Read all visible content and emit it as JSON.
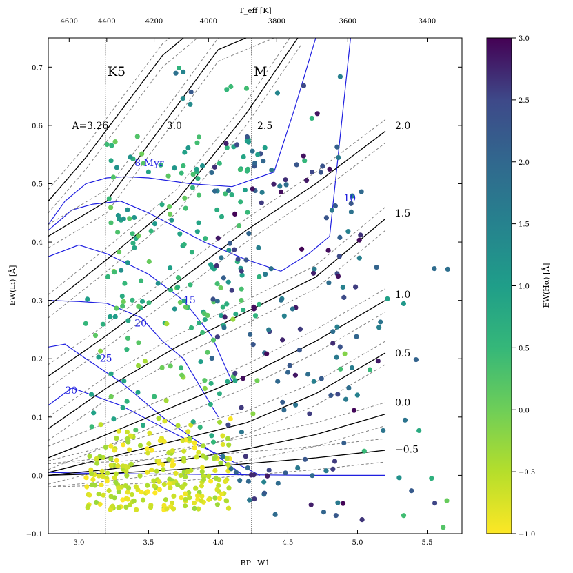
{
  "chart_data": {
    "type": "scatter",
    "xlabel": "BP−W1",
    "ylabel": "EW(Li) [Å]",
    "top_axis_label": "T_eff [K]",
    "colorbar_label": "EW(Hα) [Å]",
    "xlim": [
      2.78,
      5.75
    ],
    "ylim": [
      -0.1,
      0.75
    ],
    "colorbar_range": [
      -1.0,
      3.0
    ],
    "colormap": "viridis_r",
    "x_ticks": [
      "3.0",
      "3.5",
      "4.0",
      "4.5",
      "5.0",
      "5.5"
    ],
    "y_ticks": [
      "−0.1",
      "0.0",
      "0.1",
      "0.2",
      "0.3",
      "0.4",
      "0.5",
      "0.6",
      "0.7"
    ],
    "colorbar_ticks": [
      "−1.0",
      "−0.5",
      "0.0",
      "0.5",
      "1.0",
      "1.5",
      "2.0",
      "2.5",
      "3.0"
    ],
    "top_ticks": [
      {
        "label": "4600",
        "x": 2.93
      },
      {
        "label": "4400",
        "x": 3.2
      },
      {
        "label": "4200",
        "x": 3.54
      },
      {
        "label": "4000",
        "x": 3.93
      },
      {
        "label": "3800",
        "x": 4.42
      },
      {
        "label": "3600",
        "x": 4.93
      },
      {
        "label": "3400",
        "x": 5.5
      }
    ],
    "spectral_type_boundaries": [
      {
        "label": "K5",
        "x": 3.19
      },
      {
        "label": "M",
        "x": 4.24
      }
    ],
    "lithium_abundance_curves": [
      {
        "label": "A=3.26",
        "x": [
          2.78,
          3.05,
          3.6,
          3.95
        ],
        "y": [
          0.47,
          0.545,
          0.72,
          0.79
        ]
      },
      {
        "label": "3.0",
        "x": [
          2.78,
          3.2,
          3.6,
          4.0,
          4.6
        ],
        "y": [
          0.41,
          0.47,
          0.6,
          0.73,
          0.79
        ]
      },
      {
        "label": "2.5",
        "x": [
          2.78,
          3.2,
          3.7,
          4.2,
          4.6
        ],
        "y": [
          0.29,
          0.37,
          0.47,
          0.62,
          0.76
        ]
      },
      {
        "label": "2.0",
        "x": [
          2.78,
          3.2,
          3.7,
          4.2,
          4.7,
          5.2
        ],
        "y": [
          0.17,
          0.24,
          0.33,
          0.42,
          0.5,
          0.59
        ]
      },
      {
        "label": "1.5",
        "x": [
          2.78,
          3.2,
          3.7,
          4.2,
          4.7,
          5.2
        ],
        "y": [
          0.08,
          0.15,
          0.22,
          0.28,
          0.34,
          0.44
        ]
      },
      {
        "label": "1.0",
        "x": [
          2.78,
          3.2,
          3.7,
          4.2,
          4.7,
          5.2
        ],
        "y": [
          0.03,
          0.07,
          0.12,
          0.17,
          0.23,
          0.3
        ]
      },
      {
        "label": "0.5",
        "x": [
          2.78,
          3.2,
          3.7,
          4.2,
          4.7,
          5.2
        ],
        "y": [
          0.005,
          0.03,
          0.06,
          0.09,
          0.14,
          0.21
        ]
      },
      {
        "label": "0.0",
        "x": [
          2.78,
          3.2,
          3.7,
          4.2,
          4.7,
          5.2
        ],
        "y": [
          0.0,
          0.01,
          0.025,
          0.045,
          0.07,
          0.105
        ]
      },
      {
        "label": "−0.5",
        "x": [
          2.78,
          3.2,
          3.7,
          4.2,
          4.7,
          5.2
        ],
        "y": [
          0.0,
          0.003,
          0.01,
          0.02,
          0.03,
          0.043
        ]
      }
    ],
    "isochrones": [
      {
        "label": "8 Myr",
        "x": [
          2.78,
          2.9,
          3.05,
          3.2,
          3.33,
          3.5,
          3.8,
          4.1,
          4.4,
          4.55,
          4.7,
          4.85
        ],
        "y": [
          0.43,
          0.47,
          0.5,
          0.51,
          0.512,
          0.51,
          0.5,
          0.495,
          0.52,
          0.63,
          0.75,
          0.85
        ]
      },
      {
        "label": "10",
        "x": [
          2.78,
          2.95,
          3.1,
          3.3,
          3.5,
          3.9,
          4.2,
          4.45,
          4.65,
          4.8,
          4.95
        ],
        "y": [
          0.42,
          0.455,
          0.465,
          0.47,
          0.45,
          0.4,
          0.37,
          0.35,
          0.38,
          0.41,
          0.75
        ]
      },
      {
        "label": "15",
        "x": [
          2.78,
          3.0,
          3.2,
          3.5,
          3.75,
          3.95,
          4.1
        ],
        "y": [
          0.375,
          0.395,
          0.38,
          0.345,
          0.3,
          0.24,
          0.16
        ]
      },
      {
        "label": "20",
        "x": [
          2.78,
          3.0,
          3.2,
          3.45,
          3.6,
          3.75,
          3.85,
          4.0
        ],
        "y": [
          0.3,
          0.298,
          0.295,
          0.27,
          0.23,
          0.2,
          0.16,
          0.1
        ]
      },
      {
        "label": "25",
        "x": [
          2.78,
          2.9,
          3.05,
          3.3,
          3.6,
          3.9,
          4.18
        ],
        "y": [
          0.22,
          0.225,
          0.2,
          0.16,
          0.1,
          0.05,
          0.0
        ]
      },
      {
        "label": "30",
        "x": [
          2.78,
          2.95,
          3.3,
          3.7,
          4.05,
          4.3
        ],
        "y": [
          0.12,
          0.15,
          0.12,
          0.07,
          0.03,
          0.0
        ]
      },
      {
        "label": "",
        "x": [
          2.78,
          3.2,
          3.7,
          4.2,
          4.7,
          5.2
        ],
        "y": [
          0.005,
          0.003,
          0.002,
          0.001,
          0.0,
          0.0
        ]
      }
    ]
  }
}
